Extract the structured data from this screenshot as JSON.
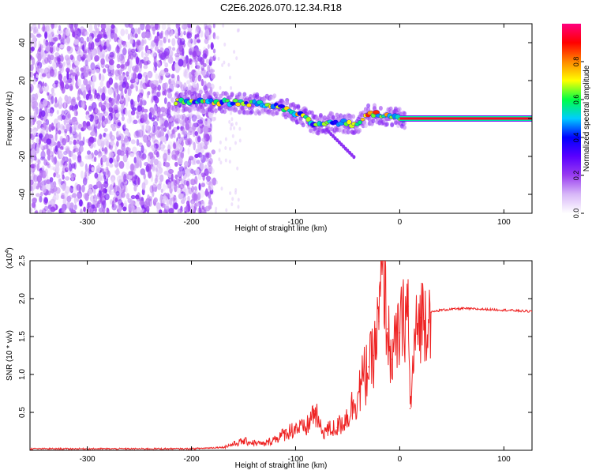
{
  "title": "C2E6.2026.070.12.34.R18",
  "chart_data": [
    {
      "type": "heatmap",
      "xlabel": "Height of straight line (km)",
      "ylabel": "Frequency (Hz)",
      "xlim": [
        -355,
        127
      ],
      "ylim": [
        -50,
        50
      ],
      "xticks": [
        -300,
        -200,
        -100,
        0,
        100
      ],
      "yticks": [
        -40,
        -20,
        0,
        20,
        40
      ],
      "colorbar": {
        "label": "Normalized spectral amplitude",
        "range": [
          0,
          1
        ],
        "ticks": [
          0.0,
          0.2,
          0.4,
          0.6,
          0.8
        ],
        "colormap": [
          "#ffffff",
          "#d8b8f8",
          "#9a3df0",
          "#5a00ff",
          "#0000ff",
          "#00ccff",
          "#00ff44",
          "#ffff00",
          "#ff8800",
          "#ff0000",
          "#ff007f"
        ]
      },
      "ridge": {
        "description_points_x": [
          -210,
          -180,
          -150,
          -120,
          -100,
          -80,
          -60,
          -40,
          -30,
          -20,
          -10,
          0,
          127
        ],
        "description_points_y": [
          9,
          9,
          8,
          7,
          3,
          -3,
          -2,
          -3,
          2,
          2,
          1,
          0,
          0
        ]
      }
    },
    {
      "type": "line",
      "xlabel": "Height of straight line (km)",
      "ylabel": "SNR (10 * v/v)",
      "y_multiplier": "(x10",
      "y_multiplier_exp": "4",
      "y_multiplier_close": ")",
      "xlim": [
        -355,
        127
      ],
      "ylim": [
        0,
        2.5
      ],
      "xticks": [
        -300,
        -200,
        -100,
        0,
        100
      ],
      "yticks": [
        0.5,
        1.0,
        1.5,
        2.0,
        2.5
      ],
      "color": "#ee2222",
      "series": [
        {
          "name": "SNR",
          "x": [
            -355,
            -200,
            -170,
            -150,
            -130,
            -120,
            -110,
            -100,
            -90,
            -82,
            -75,
            -60,
            -50,
            -40,
            -30,
            -25,
            -20,
            -16,
            -12,
            -8,
            0,
            8,
            10,
            15,
            20,
            30,
            40,
            50,
            60,
            80,
            100,
            127
          ],
          "y": [
            0.02,
            0.02,
            0.04,
            0.12,
            0.08,
            0.15,
            0.22,
            0.3,
            0.28,
            0.52,
            0.25,
            0.3,
            0.45,
            0.75,
            1.1,
            1.25,
            1.7,
            2.5,
            1.6,
            1.2,
            1.55,
            1.9,
            0.55,
            1.5,
            1.75,
            1.82,
            1.85,
            1.86,
            1.87,
            1.86,
            1.85,
            1.83
          ]
        }
      ]
    }
  ]
}
